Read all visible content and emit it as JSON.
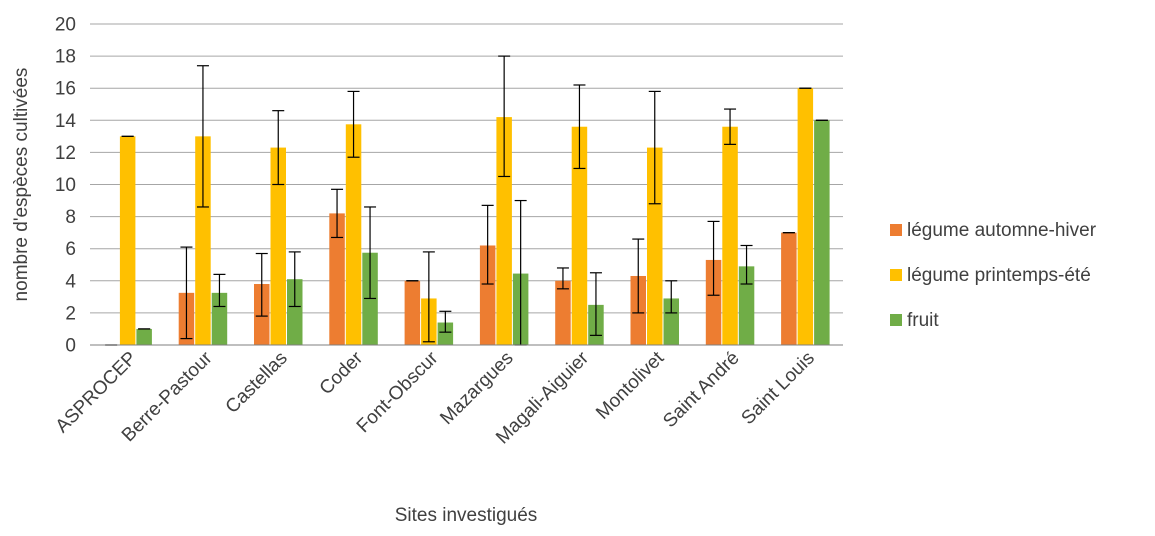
{
  "chart_data": {
    "type": "bar",
    "xlabel": "Sites investigués",
    "ylabel": "nombre d'espèces cultivées",
    "ylim": [
      0,
      20
    ],
    "yticks": [
      0,
      2,
      4,
      6,
      8,
      10,
      12,
      14,
      16,
      18,
      20
    ],
    "grid": true,
    "legend_position": "right",
    "categories": [
      "ASPROCEP",
      "Berre-Pastour",
      "Castellas",
      "Coder",
      "Font-Obscur",
      "Mazargues",
      "Magali-Aiguier",
      "Montolivet",
      "Saint André",
      "Saint Louis"
    ],
    "series": [
      {
        "name": "légume automne-hiver",
        "color": "#ed7d31",
        "values": [
          0,
          3.25,
          3.8,
          8.2,
          4.0,
          6.2,
          4.0,
          4.3,
          5.3,
          7.0
        ],
        "error_low": [
          0,
          0.4,
          1.8,
          6.7,
          4.0,
          3.8,
          3.5,
          2.0,
          3.1,
          7.0
        ],
        "error_high": [
          0,
          6.1,
          5.7,
          9.7,
          4.0,
          8.7,
          4.8,
          6.6,
          7.7,
          7.0
        ]
      },
      {
        "name": "légume printemps-été",
        "color": "#ffc000",
        "values": [
          13.0,
          13.0,
          12.3,
          13.75,
          2.9,
          14.2,
          13.6,
          12.3,
          13.6,
          16.0
        ],
        "error_low": [
          13.0,
          8.6,
          10.0,
          11.7,
          0.2,
          10.5,
          11.0,
          8.8,
          12.5,
          16.0
        ],
        "error_high": [
          13.0,
          17.4,
          14.6,
          15.8,
          5.8,
          18.0,
          16.2,
          15.8,
          14.7,
          16.0
        ]
      },
      {
        "name": "fruit",
        "color": "#70ad47",
        "values": [
          1.0,
          3.25,
          4.1,
          5.75,
          1.4,
          4.45,
          2.5,
          2.9,
          4.9,
          14.0
        ],
        "error_low": [
          1.0,
          2.4,
          2.4,
          2.9,
          0.8,
          0.0,
          0.6,
          2.0,
          3.8,
          14.0
        ],
        "error_high": [
          1.0,
          4.4,
          5.8,
          8.6,
          2.1,
          9.0,
          4.5,
          4.0,
          6.2,
          14.0
        ]
      }
    ]
  }
}
